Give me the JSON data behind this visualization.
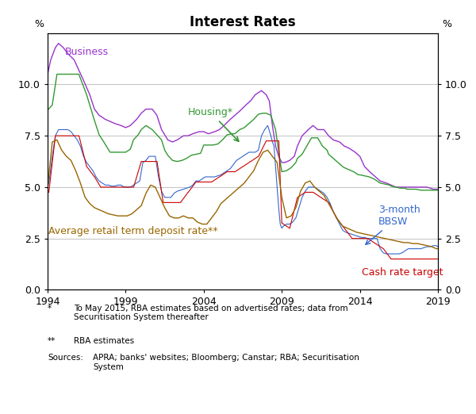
{
  "title": "Interest Rates",
  "ylabel_left": "%",
  "ylabel_right": "%",
  "xlim": [
    1994,
    2019
  ],
  "ylim": [
    0.0,
    12.5
  ],
  "yticks": [
    0.0,
    2.5,
    5.0,
    7.5,
    10.0
  ],
  "ytick_labels": [
    "0.0",
    "2.5",
    "5.0",
    "7.5",
    "10.0"
  ],
  "xticks": [
    1994,
    1999,
    2004,
    2009,
    2014,
    2019
  ],
  "footnote1_marker": "*",
  "footnote1_text": "To May 2015, RBA estimates based on advertised rates; data from\nSecuritisation System thereafter",
  "footnote2_marker": "**",
  "footnote2_text": "RBA estimates",
  "footnote3_label": "Sources:",
  "footnote3_text": "APRA; banks' websites; Bloomberg; Canstar; RBA; Securitisation\nSystem",
  "colors": {
    "business": "#9933CC",
    "housing": "#339933",
    "bbsw": "#3366CC",
    "cash": "#CC0000",
    "deposit": "#996600"
  },
  "label_business": "Business",
  "label_housing": "Housing*",
  "label_bbsw": "3-month\nBBSW",
  "label_cash": "Cash rate target",
  "label_deposit": "Average retail term deposit rate**",
  "background_color": "#ffffff",
  "grid_color": "#aaaaaa",
  "biz_x": [
    1994.0,
    1994.2,
    1994.5,
    1994.7,
    1995.0,
    1995.3,
    1995.7,
    1996.0,
    1996.3,
    1996.7,
    1997.0,
    1997.3,
    1997.7,
    1998.0,
    1998.3,
    1998.7,
    1999.0,
    1999.3,
    1999.7,
    2000.0,
    2000.3,
    2000.7,
    2001.0,
    2001.3,
    2001.7,
    2002.0,
    2002.3,
    2002.7,
    2003.0,
    2003.3,
    2003.7,
    2004.0,
    2004.3,
    2004.7,
    2005.0,
    2005.3,
    2005.7,
    2006.0,
    2006.3,
    2006.7,
    2007.0,
    2007.3,
    2007.7,
    2008.0,
    2008.2,
    2008.4,
    2008.6,
    2008.8,
    2009.0,
    2009.2,
    2009.5,
    2009.8,
    2010.0,
    2010.3,
    2010.7,
    2011.0,
    2011.3,
    2011.7,
    2012.0,
    2012.3,
    2012.7,
    2013.0,
    2013.3,
    2013.7,
    2014.0,
    2014.3,
    2014.7,
    2015.0,
    2015.3,
    2015.7,
    2016.0,
    2016.3,
    2016.7,
    2017.0,
    2017.3,
    2017.7,
    2018.0,
    2018.3,
    2018.7,
    2019.0
  ],
  "biz_y": [
    10.5,
    11.2,
    11.8,
    12.0,
    11.8,
    11.5,
    11.2,
    10.7,
    10.2,
    9.5,
    8.8,
    8.5,
    8.3,
    8.2,
    8.1,
    8.0,
    7.9,
    8.0,
    8.3,
    8.6,
    8.8,
    8.8,
    8.5,
    7.8,
    7.3,
    7.2,
    7.3,
    7.5,
    7.5,
    7.6,
    7.7,
    7.7,
    7.6,
    7.7,
    7.8,
    8.0,
    8.3,
    8.5,
    8.7,
    9.0,
    9.2,
    9.5,
    9.7,
    9.5,
    9.2,
    8.0,
    7.0,
    6.5,
    6.2,
    6.2,
    6.3,
    6.5,
    7.0,
    7.5,
    7.8,
    8.0,
    7.8,
    7.8,
    7.5,
    7.3,
    7.2,
    7.0,
    6.9,
    6.7,
    6.5,
    6.0,
    5.7,
    5.5,
    5.3,
    5.2,
    5.1,
    5.0,
    5.0,
    5.0,
    5.0,
    5.0,
    5.0,
    5.0,
    4.9,
    4.9
  ],
  "hou_x": [
    1994.0,
    1994.3,
    1994.6,
    1994.9,
    1995.0,
    1995.5,
    1996.0,
    1996.5,
    1997.0,
    1997.3,
    1997.6,
    1998.0,
    1998.5,
    1999.0,
    1999.3,
    1999.5,
    1999.8,
    2000.0,
    2000.3,
    2000.7,
    2001.0,
    2001.3,
    2001.5,
    2001.7,
    2002.0,
    2002.3,
    2002.6,
    2002.9,
    2003.2,
    2003.5,
    2003.8,
    2004.0,
    2004.3,
    2004.6,
    2004.9,
    2005.2,
    2005.5,
    2005.8,
    2006.0,
    2006.3,
    2006.6,
    2006.9,
    2007.2,
    2007.5,
    2007.8,
    2008.0,
    2008.3,
    2008.6,
    2008.9,
    2009.0,
    2009.3,
    2009.6,
    2009.9,
    2010.0,
    2010.3,
    2010.6,
    2010.9,
    2011.0,
    2011.3,
    2011.6,
    2011.9,
    2012.0,
    2012.3,
    2012.6,
    2012.9,
    2013.0,
    2013.3,
    2013.6,
    2013.9,
    2014.0,
    2014.3,
    2014.6,
    2014.9,
    2015.0,
    2015.3,
    2015.6,
    2015.9,
    2016.0,
    2016.3,
    2016.6,
    2016.9,
    2017.0,
    2017.3,
    2017.6,
    2017.9,
    2018.0,
    2018.3,
    2018.6,
    2018.9,
    2019.0
  ],
  "hou_y": [
    8.75,
    9.0,
    10.5,
    10.5,
    10.5,
    10.5,
    10.5,
    9.5,
    8.25,
    7.55,
    7.2,
    6.7,
    6.7,
    6.7,
    6.85,
    7.3,
    7.55,
    7.8,
    8.0,
    7.8,
    7.55,
    7.3,
    6.8,
    6.55,
    6.3,
    6.25,
    6.3,
    6.4,
    6.55,
    6.6,
    6.65,
    7.05,
    7.05,
    7.05,
    7.1,
    7.3,
    7.55,
    7.6,
    7.6,
    7.8,
    7.9,
    8.1,
    8.3,
    8.55,
    8.6,
    8.6,
    8.5,
    7.8,
    6.2,
    5.75,
    5.8,
    5.95,
    6.2,
    6.4,
    6.6,
    7.0,
    7.4,
    7.4,
    7.4,
    7.0,
    6.8,
    6.6,
    6.4,
    6.2,
    6.0,
    5.95,
    5.85,
    5.75,
    5.6,
    5.6,
    5.55,
    5.5,
    5.4,
    5.35,
    5.2,
    5.15,
    5.1,
    5.05,
    5.0,
    4.95,
    4.95,
    4.9,
    4.9,
    4.9,
    4.85,
    4.85,
    4.85,
    4.85,
    4.85,
    4.85
  ],
  "bbsw_x": [
    1994.0,
    1994.1,
    1994.3,
    1994.5,
    1994.7,
    1994.9,
    1995.1,
    1995.3,
    1995.5,
    1995.7,
    1995.9,
    1996.1,
    1996.3,
    1996.5,
    1996.7,
    1996.9,
    1997.1,
    1997.3,
    1997.5,
    1997.7,
    1997.9,
    1998.1,
    1998.3,
    1998.5,
    1998.7,
    1998.9,
    1999.1,
    1999.3,
    1999.5,
    1999.7,
    1999.9,
    2000.1,
    2000.3,
    2000.5,
    2000.7,
    2000.9,
    2001.1,
    2001.3,
    2001.5,
    2001.7,
    2001.9,
    2002.1,
    2002.3,
    2002.5,
    2002.7,
    2002.9,
    2003.1,
    2003.3,
    2003.5,
    2003.7,
    2003.9,
    2004.1,
    2004.3,
    2004.5,
    2004.7,
    2004.9,
    2005.1,
    2005.3,
    2005.5,
    2005.7,
    2005.9,
    2006.1,
    2006.3,
    2006.5,
    2006.7,
    2006.9,
    2007.1,
    2007.3,
    2007.5,
    2007.7,
    2007.9,
    2008.1,
    2008.3,
    2008.4,
    2008.5,
    2008.6,
    2008.7,
    2008.8,
    2008.9,
    2009.0,
    2009.1,
    2009.3,
    2009.5,
    2009.7,
    2009.9,
    2010.1,
    2010.3,
    2010.5,
    2010.7,
    2010.9,
    2011.1,
    2011.3,
    2011.5,
    2011.7,
    2011.9,
    2012.1,
    2012.3,
    2012.5,
    2012.7,
    2012.9,
    2013.1,
    2013.3,
    2013.5,
    2013.7,
    2013.9,
    2014.1,
    2014.3,
    2014.5,
    2014.7,
    2014.9,
    2015.1,
    2015.3,
    2015.5,
    2015.7,
    2015.9,
    2016.1,
    2016.3,
    2016.5,
    2016.7,
    2016.9,
    2017.1,
    2017.3,
    2017.5,
    2017.7,
    2017.9,
    2018.1,
    2018.3,
    2018.5,
    2018.7,
    2018.9,
    2019.0
  ],
  "bbsw_y": [
    5.0,
    5.3,
    6.5,
    7.5,
    7.8,
    7.8,
    7.8,
    7.8,
    7.7,
    7.5,
    7.3,
    7.0,
    6.5,
    6.2,
    6.0,
    5.8,
    5.5,
    5.3,
    5.2,
    5.1,
    5.1,
    5.05,
    5.05,
    5.1,
    5.1,
    5.0,
    5.0,
    5.0,
    5.1,
    5.2,
    5.3,
    6.2,
    6.3,
    6.5,
    6.5,
    6.5,
    5.5,
    4.8,
    4.5,
    4.5,
    4.5,
    4.7,
    4.8,
    4.85,
    4.9,
    4.95,
    5.0,
    5.1,
    5.3,
    5.3,
    5.4,
    5.5,
    5.5,
    5.5,
    5.5,
    5.55,
    5.6,
    5.7,
    5.8,
    5.9,
    6.1,
    6.3,
    6.4,
    6.5,
    6.6,
    6.7,
    6.7,
    6.7,
    6.8,
    7.5,
    7.8,
    8.0,
    7.5,
    7.2,
    7.0,
    6.0,
    5.0,
    4.0,
    3.2,
    3.0,
    3.1,
    3.2,
    3.2,
    3.3,
    3.5,
    4.0,
    4.5,
    4.8,
    5.0,
    5.0,
    5.0,
    4.9,
    4.8,
    4.7,
    4.5,
    4.2,
    3.8,
    3.5,
    3.2,
    2.9,
    2.8,
    2.75,
    2.7,
    2.65,
    2.6,
    2.55,
    2.55,
    2.5,
    2.5,
    2.5,
    2.5,
    2.0,
    1.8,
    1.75,
    1.75,
    1.75,
    1.75,
    1.75,
    1.8,
    1.9,
    2.0,
    2.0,
    2.0,
    2.0,
    2.0,
    2.05,
    2.1,
    2.1,
    2.15,
    2.15,
    2.1
  ],
  "cash_x": [
    1994.0,
    1994.08,
    1994.5,
    1994.51,
    1995.0,
    1995.01,
    1995.7,
    1995.71,
    1996.0,
    1996.01,
    1996.5,
    1996.51,
    1997.0,
    1997.01,
    1997.4,
    1997.41,
    1998.0,
    1998.01,
    1998.5,
    1998.51,
    1999.0,
    1999.01,
    1999.5,
    1999.51,
    2000.0,
    2000.01,
    2000.5,
    2000.51,
    2001.0,
    2001.01,
    2001.4,
    2001.41,
    2002.0,
    2002.01,
    2002.5,
    2002.51,
    2003.0,
    2003.01,
    2003.5,
    2003.51,
    2004.0,
    2004.01,
    2004.5,
    2004.51,
    2005.0,
    2005.01,
    2005.5,
    2005.51,
    2006.0,
    2006.01,
    2006.5,
    2006.51,
    2007.0,
    2007.01,
    2007.5,
    2007.51,
    2008.0,
    2008.01,
    2008.4,
    2008.41,
    2008.8,
    2008.81,
    2009.0,
    2009.01,
    2009.5,
    2009.51,
    2010.0,
    2010.01,
    2010.5,
    2010.51,
    2011.0,
    2011.01,
    2011.5,
    2011.51,
    2012.0,
    2012.01,
    2012.5,
    2012.51,
    2013.0,
    2013.01,
    2013.5,
    2013.51,
    2014.0,
    2014.01,
    2014.5,
    2014.51,
    2015.0,
    2015.01,
    2015.5,
    2015.51,
    2016.0,
    2016.01,
    2016.5,
    2016.51,
    2017.0,
    2017.01,
    2017.5,
    2017.51,
    2018.0,
    2018.01,
    2018.5,
    2018.51,
    2019.0
  ],
  "cash_y": [
    4.75,
    4.75,
    7.5,
    7.5,
    7.5,
    7.5,
    7.5,
    7.5,
    7.5,
    7.5,
    6.0,
    6.0,
    5.5,
    5.5,
    5.0,
    5.0,
    5.0,
    5.0,
    5.0,
    5.0,
    5.0,
    5.0,
    5.0,
    5.0,
    6.25,
    6.25,
    6.25,
    6.25,
    6.25,
    6.25,
    4.25,
    4.25,
    4.25,
    4.25,
    4.25,
    4.25,
    4.75,
    4.75,
    5.25,
    5.25,
    5.25,
    5.25,
    5.25,
    5.25,
    5.5,
    5.5,
    5.75,
    5.75,
    5.75,
    5.75,
    6.0,
    6.0,
    6.25,
    6.25,
    6.5,
    6.5,
    7.25,
    7.25,
    7.25,
    7.25,
    7.25,
    7.25,
    3.25,
    3.25,
    3.0,
    3.0,
    4.5,
    4.5,
    4.75,
    4.75,
    4.75,
    4.75,
    4.5,
    4.5,
    4.25,
    4.25,
    3.5,
    3.5,
    3.0,
    3.0,
    2.5,
    2.5,
    2.5,
    2.5,
    2.5,
    2.5,
    2.25,
    2.25,
    2.0,
    2.0,
    1.5,
    1.5,
    1.5,
    1.5,
    1.5,
    1.5,
    1.5,
    1.5,
    1.5,
    1.5,
    1.5,
    1.5,
    1.5
  ],
  "dep_x": [
    1994.0,
    1994.3,
    1994.6,
    1994.9,
    1995.2,
    1995.5,
    1995.8,
    1996.1,
    1996.4,
    1996.7,
    1997.0,
    1997.3,
    1997.6,
    1997.9,
    1998.2,
    1998.5,
    1998.8,
    1999.1,
    1999.4,
    1999.7,
    2000.0,
    2000.3,
    2000.6,
    2000.9,
    2001.2,
    2001.5,
    2001.8,
    2002.1,
    2002.4,
    2002.7,
    2003.0,
    2003.3,
    2003.6,
    2003.9,
    2004.2,
    2004.5,
    2004.8,
    2005.1,
    2005.4,
    2005.7,
    2006.0,
    2006.3,
    2006.6,
    2006.9,
    2007.2,
    2007.5,
    2007.8,
    2008.1,
    2008.4,
    2008.7,
    2009.0,
    2009.3,
    2009.6,
    2009.9,
    2010.2,
    2010.5,
    2010.8,
    2011.1,
    2011.4,
    2011.7,
    2012.0,
    2012.3,
    2012.6,
    2012.9,
    2013.2,
    2013.5,
    2013.8,
    2014.1,
    2014.4,
    2014.7,
    2015.0,
    2015.3,
    2015.6,
    2015.9,
    2016.2,
    2016.5,
    2016.8,
    2017.1,
    2017.4,
    2017.7,
    2018.0,
    2018.3,
    2018.6,
    2018.9,
    2019.0
  ],
  "dep_y": [
    5.0,
    7.2,
    7.3,
    6.8,
    6.5,
    6.3,
    5.8,
    5.2,
    4.5,
    4.2,
    4.0,
    3.9,
    3.8,
    3.7,
    3.65,
    3.6,
    3.6,
    3.6,
    3.7,
    3.9,
    4.1,
    4.7,
    5.1,
    5.0,
    4.5,
    4.0,
    3.6,
    3.5,
    3.5,
    3.6,
    3.5,
    3.5,
    3.3,
    3.2,
    3.2,
    3.5,
    3.8,
    4.2,
    4.4,
    4.6,
    4.8,
    5.0,
    5.2,
    5.5,
    5.8,
    6.3,
    6.7,
    6.8,
    6.5,
    6.2,
    4.5,
    3.5,
    3.6,
    4.0,
    4.8,
    5.2,
    5.3,
    5.0,
    4.8,
    4.6,
    4.2,
    3.8,
    3.4,
    3.1,
    3.0,
    2.9,
    2.8,
    2.75,
    2.7,
    2.65,
    2.6,
    2.55,
    2.5,
    2.45,
    2.4,
    2.35,
    2.3,
    2.3,
    2.25,
    2.25,
    2.2,
    2.15,
    2.1,
    2.0,
    2.0
  ]
}
